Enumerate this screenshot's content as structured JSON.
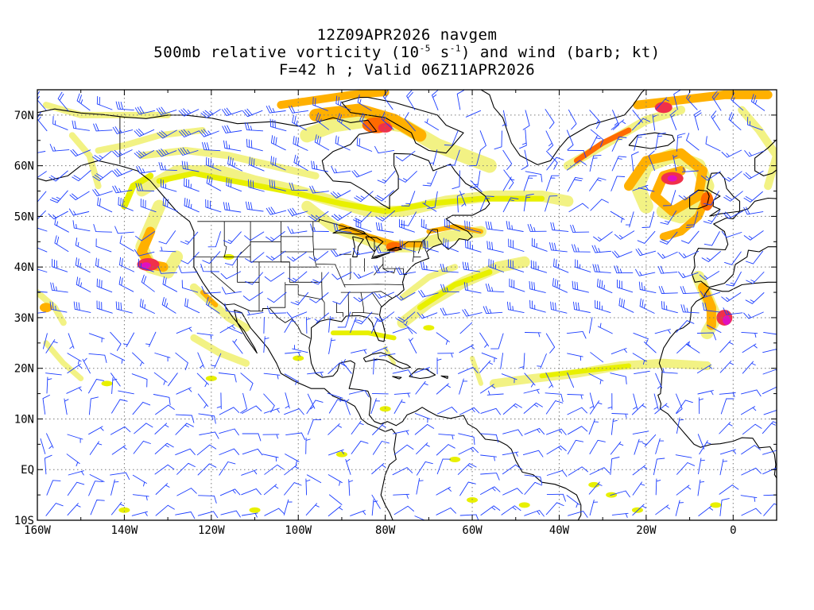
{
  "title": {
    "line1": "12Z09APR2026 navgem",
    "line2_prefix": "500mb relative vorticity (10",
    "line2_exp1": "-5",
    "line2_mid": " s",
    "line2_exp2": "-1",
    "line2_suffix": ") and wind (barb; kt)",
    "line3": "F=42 h ; Valid 06Z11APR2026"
  },
  "map": {
    "lon_range": [
      -160,
      10
    ],
    "lat_range": [
      -10,
      75
    ],
    "colors": {
      "light_yellow": "#f2f284",
      "yellow": "#e8f000",
      "orange": "#ffb000",
      "dark_orange": "#ff6a00",
      "red": "#f0304a",
      "magenta": "#e010c0",
      "barb": "#1a3cff",
      "coast": "#000000",
      "grid": "#7a7a7a"
    }
  },
  "axes": {
    "x_ticks": [
      {
        "lon": -160,
        "label": "160W"
      },
      {
        "lon": -140,
        "label": "140W"
      },
      {
        "lon": -120,
        "label": "120W"
      },
      {
        "lon": -100,
        "label": "100W"
      },
      {
        "lon": -80,
        "label": "80W"
      },
      {
        "lon": -60,
        "label": "60W"
      },
      {
        "lon": -40,
        "label": "40W"
      },
      {
        "lon": -20,
        "label": "20W"
      },
      {
        "lon": 0,
        "label": "0"
      }
    ],
    "y_ticks": [
      {
        "lat": 70,
        "label": "70N"
      },
      {
        "lat": 60,
        "label": "60N"
      },
      {
        "lat": 50,
        "label": "50N"
      },
      {
        "lat": 40,
        "label": "40N"
      },
      {
        "lat": 30,
        "label": "30N"
      },
      {
        "lat": 20,
        "label": "20N"
      },
      {
        "lat": 10,
        "label": "10N"
      },
      {
        "lat": 0,
        "label": "EQ"
      },
      {
        "lat": -10,
        "label": "10S"
      }
    ]
  }
}
